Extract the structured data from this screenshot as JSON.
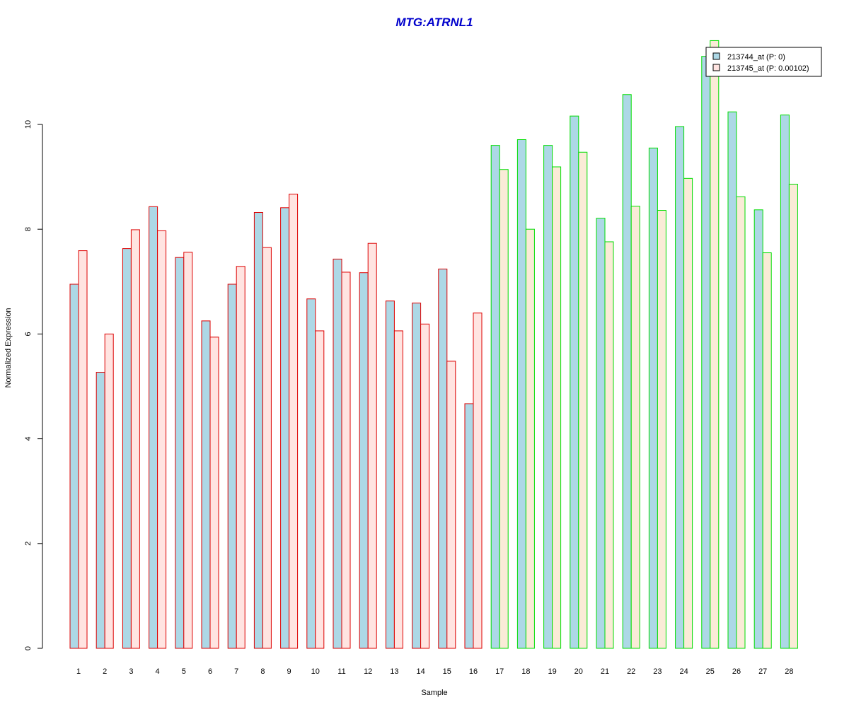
{
  "chart_data": {
    "type": "bar",
    "title": "MTG:ATRNL1",
    "xlabel": "Sample",
    "ylabel": "Normalized Expression",
    "ylim": [
      0,
      11.6
    ],
    "yticks": [
      0,
      2,
      4,
      6,
      8,
      10
    ],
    "categories": [
      "1",
      "2",
      "3",
      "4",
      "5",
      "6",
      "7",
      "8",
      "9",
      "10",
      "11",
      "12",
      "13",
      "14",
      "15",
      "16",
      "17",
      "18",
      "19",
      "20",
      "21",
      "22",
      "23",
      "24",
      "25",
      "26",
      "27",
      "28"
    ],
    "groups": [
      {
        "samples": [
          1,
          2,
          3,
          4,
          5,
          6,
          7,
          8,
          9,
          10,
          11,
          12,
          13,
          14,
          15,
          16
        ],
        "border_color": "#dd0000"
      },
      {
        "samples": [
          17,
          18,
          19,
          20,
          21,
          22,
          23,
          24,
          25,
          26,
          27,
          28
        ],
        "border_color": "#00dd00"
      }
    ],
    "series": [
      {
        "name": "213744_at (P: 0)",
        "fill": "#add8e6",
        "values": [
          6.95,
          5.27,
          7.63,
          8.43,
          7.46,
          6.25,
          6.95,
          8.32,
          8.41,
          6.67,
          7.43,
          7.17,
          6.63,
          6.59,
          7.24,
          4.67,
          9.6,
          9.71,
          9.6,
          10.16,
          8.21,
          10.57,
          9.55,
          9.96,
          11.3,
          10.24,
          8.37,
          10.18
        ]
      },
      {
        "name": "213745_at (P: 0.00102)",
        "fill_group1": "#ffe4e1",
        "fill_group2": "#faebd7",
        "values": [
          7.59,
          6.0,
          7.99,
          7.97,
          7.56,
          5.94,
          7.29,
          7.65,
          8.67,
          6.06,
          7.18,
          7.73,
          6.06,
          6.19,
          5.48,
          6.4,
          9.14,
          8.0,
          9.19,
          9.47,
          7.76,
          8.44,
          8.36,
          8.97,
          11.6,
          8.62,
          7.55,
          8.86
        ]
      }
    ],
    "legend": "top-right"
  }
}
